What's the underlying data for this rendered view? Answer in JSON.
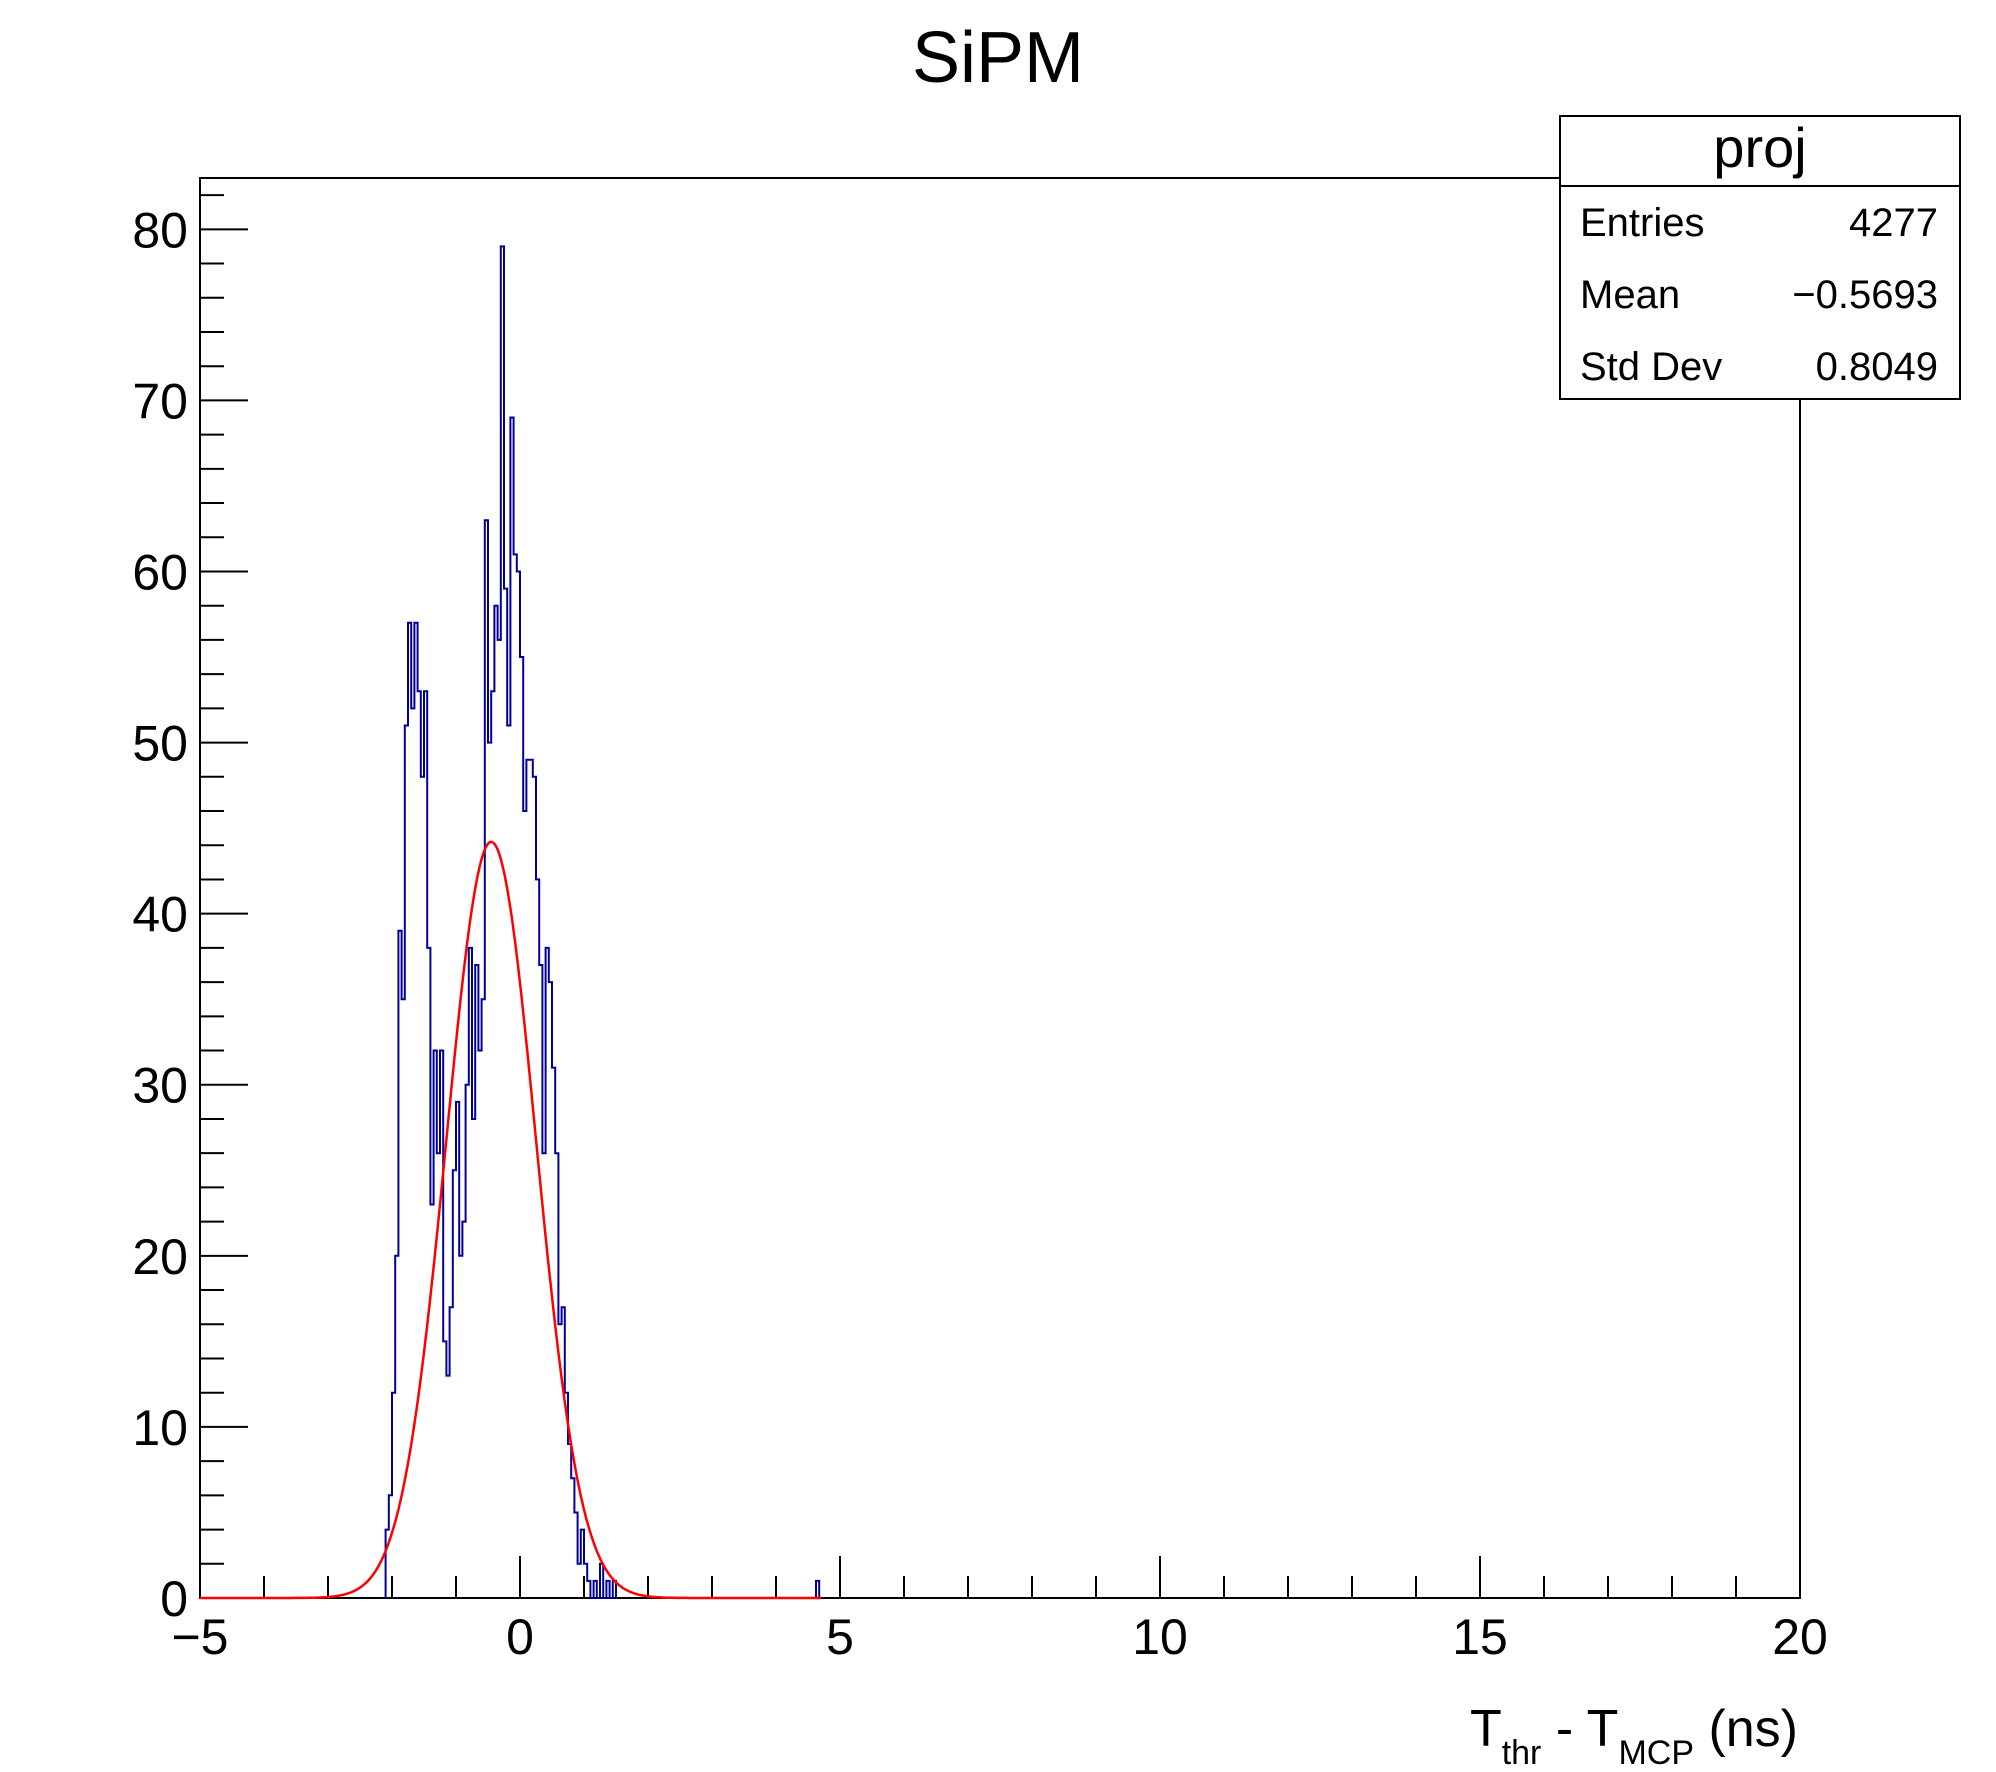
{
  "chart_data": {
    "type": "histogram",
    "title": "SiPM",
    "xlabel": {
      "parts": [
        {
          "text": "T",
          "sub": false
        },
        {
          "text": "thr",
          "sub": true
        },
        {
          "text": " - T",
          "sub": false
        },
        {
          "text": "MCP",
          "sub": true
        },
        {
          "text": " (ns)",
          "sub": false
        }
      ]
    },
    "ylabel": "",
    "xlim": [
      -5,
      20
    ],
    "ylim": [
      0,
      83
    ],
    "x_ticks": [
      {
        "value": -5,
        "label": "−5"
      },
      {
        "value": 0,
        "label": "0"
      },
      {
        "value": 5,
        "label": "5"
      },
      {
        "value": 10,
        "label": "10"
      },
      {
        "value": 15,
        "label": "15"
      },
      {
        "value": 20,
        "label": "20"
      }
    ],
    "y_ticks": [
      {
        "value": 0,
        "label": "0"
      },
      {
        "value": 10,
        "label": "10"
      },
      {
        "value": 20,
        "label": "20"
      },
      {
        "value": 30,
        "label": "30"
      },
      {
        "value": 40,
        "label": "40"
      },
      {
        "value": 50,
        "label": "50"
      },
      {
        "value": 60,
        "label": "60"
      },
      {
        "value": 70,
        "label": "70"
      },
      {
        "value": 80,
        "label": "80"
      }
    ],
    "grid": false,
    "histogram": {
      "name": "proj",
      "color": "#000099",
      "bin_edges_start": -2.1,
      "bin_width": 0.05,
      "counts": [
        4,
        6,
        12,
        20,
        39,
        35,
        51,
        57,
        52,
        57,
        53,
        48,
        53,
        38,
        23,
        32,
        26,
        32,
        15,
        13,
        17,
        25,
        29,
        20,
        22,
        30,
        38,
        28,
        37,
        32,
        35,
        63,
        50,
        53,
        58,
        56,
        79,
        59,
        51,
        69,
        61,
        60,
        55,
        46,
        49,
        49,
        48,
        42,
        37,
        26,
        38,
        36,
        31,
        26,
        16,
        17,
        12,
        9,
        7,
        5,
        2,
        4,
        2,
        1,
        0,
        1,
        0,
        2,
        0,
        1,
        0,
        1
      ]
    },
    "extra_bins": [
      {
        "x": 4.65,
        "count": 1
      }
    ],
    "fit": {
      "type": "gaussian",
      "color": "#ff0000",
      "constant": 44.2,
      "mean": -0.45,
      "sigma": 0.7,
      "x_range": [
        -5,
        4.7
      ]
    },
    "stats_box": {
      "title": "proj",
      "rows": [
        {
          "label": "Entries",
          "value": "4277"
        },
        {
          "label": "Mean",
          "value": "−0.5693"
        },
        {
          "label": "Std Dev",
          "value": "0.8049"
        }
      ],
      "placement": "top-right"
    }
  }
}
